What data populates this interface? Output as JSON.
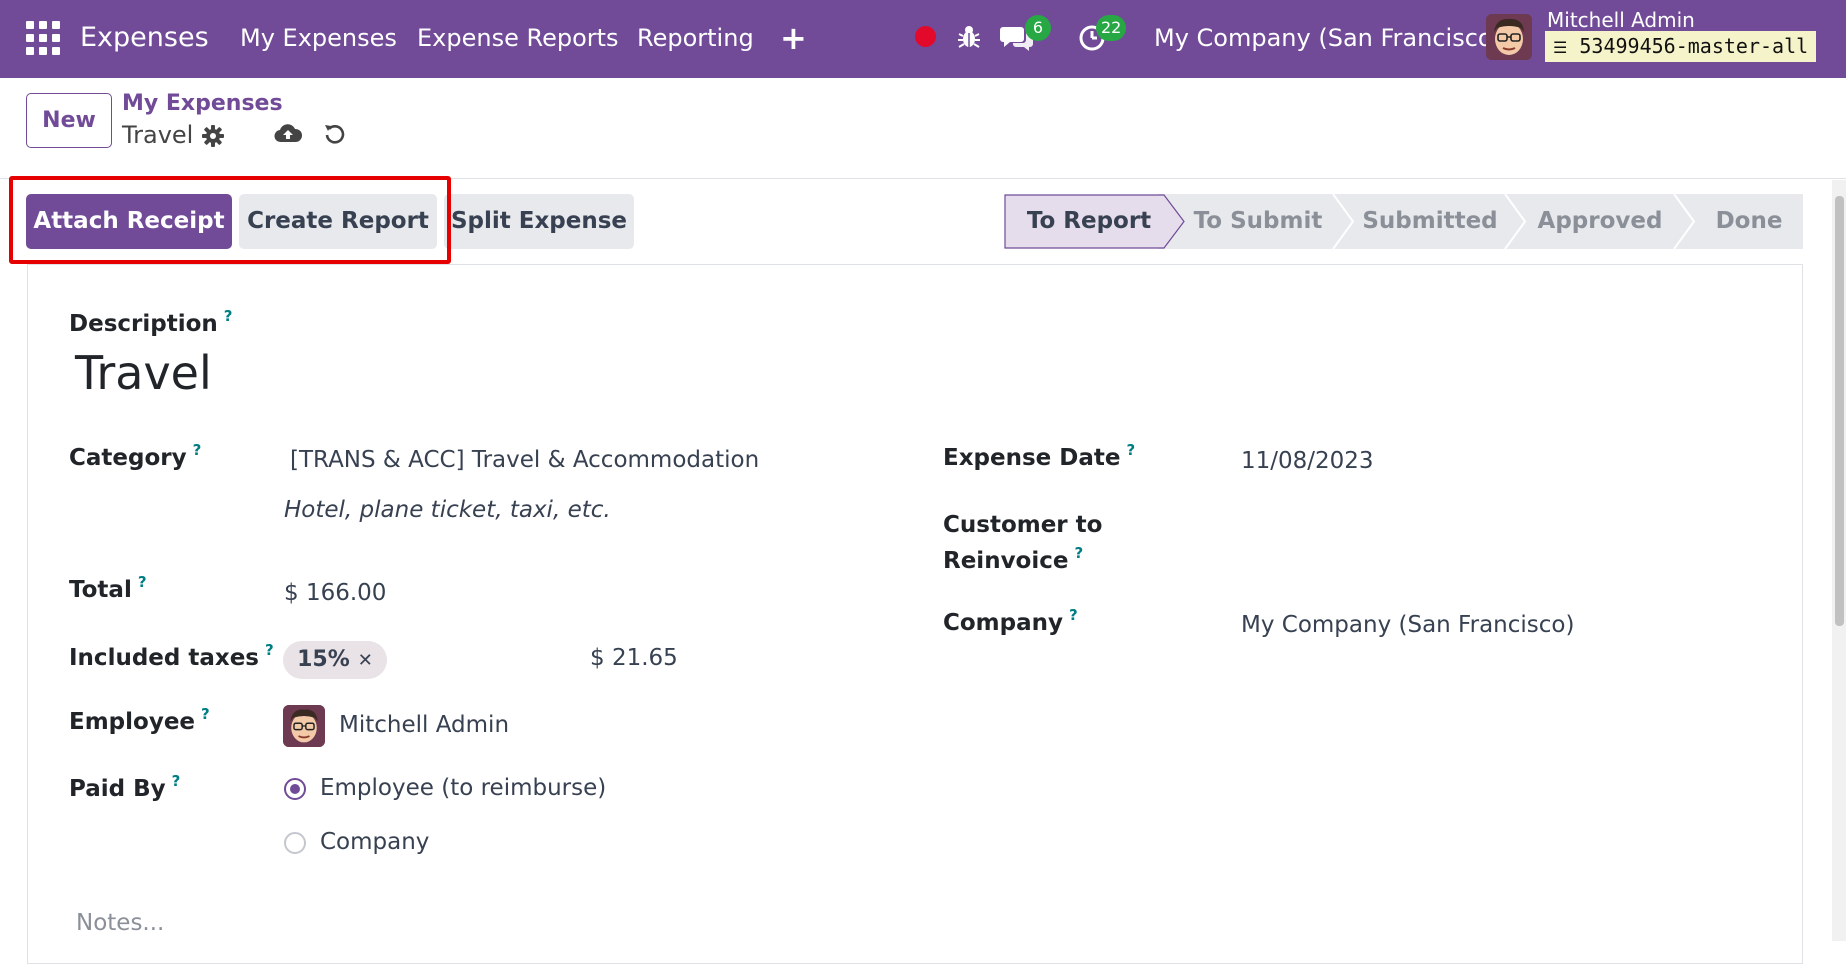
{
  "navbar": {
    "app_name": "Expenses",
    "menu": [
      "My Expenses",
      "Expense Reports",
      "Reporting"
    ],
    "plus": "+",
    "messages_count": "6",
    "activities_count": "22",
    "company": "My Company (San Francisco)",
    "user_name": "Mitchell Admin",
    "database": "53499456-master-all"
  },
  "control_panel": {
    "new_label": "New",
    "breadcrumb_parent": "My Expenses",
    "breadcrumb_current": "Travel"
  },
  "actions": {
    "attach_receipt": "Attach Receipt",
    "create_report": "Create Report",
    "split_expense": "Split Expense"
  },
  "status_stages": [
    "To Report",
    "To Submit",
    "Submitted",
    "Approved",
    "Done"
  ],
  "form": {
    "description_label": "Description",
    "description_value": "Travel",
    "category_label": "Category",
    "category_value": "[TRANS & ACC] Travel & Accommodation",
    "category_hint": "Hotel, plane ticket, taxi, etc.",
    "total_label": "Total",
    "total_value": "$ 166.00",
    "taxes_label": "Included taxes",
    "tax_tag": "15%",
    "tax_amount": "$ 21.65",
    "employee_label": "Employee",
    "employee_value": "Mitchell Admin",
    "paid_by_label": "Paid By",
    "paid_by_options": [
      "Employee (to reimburse)",
      "Company"
    ],
    "expense_date_label": "Expense Date",
    "expense_date_value": "11/08/2023",
    "customer_label_line1": "Customer to",
    "customer_label_line2": "Reinvoice",
    "company_label": "Company",
    "company_value": "My Company (San Francisco)",
    "notes_placeholder": "Notes...",
    "help_mark": "?"
  },
  "colors": {
    "brand": "#714b97",
    "highlight": "#e60000",
    "badge": "#28a745"
  }
}
